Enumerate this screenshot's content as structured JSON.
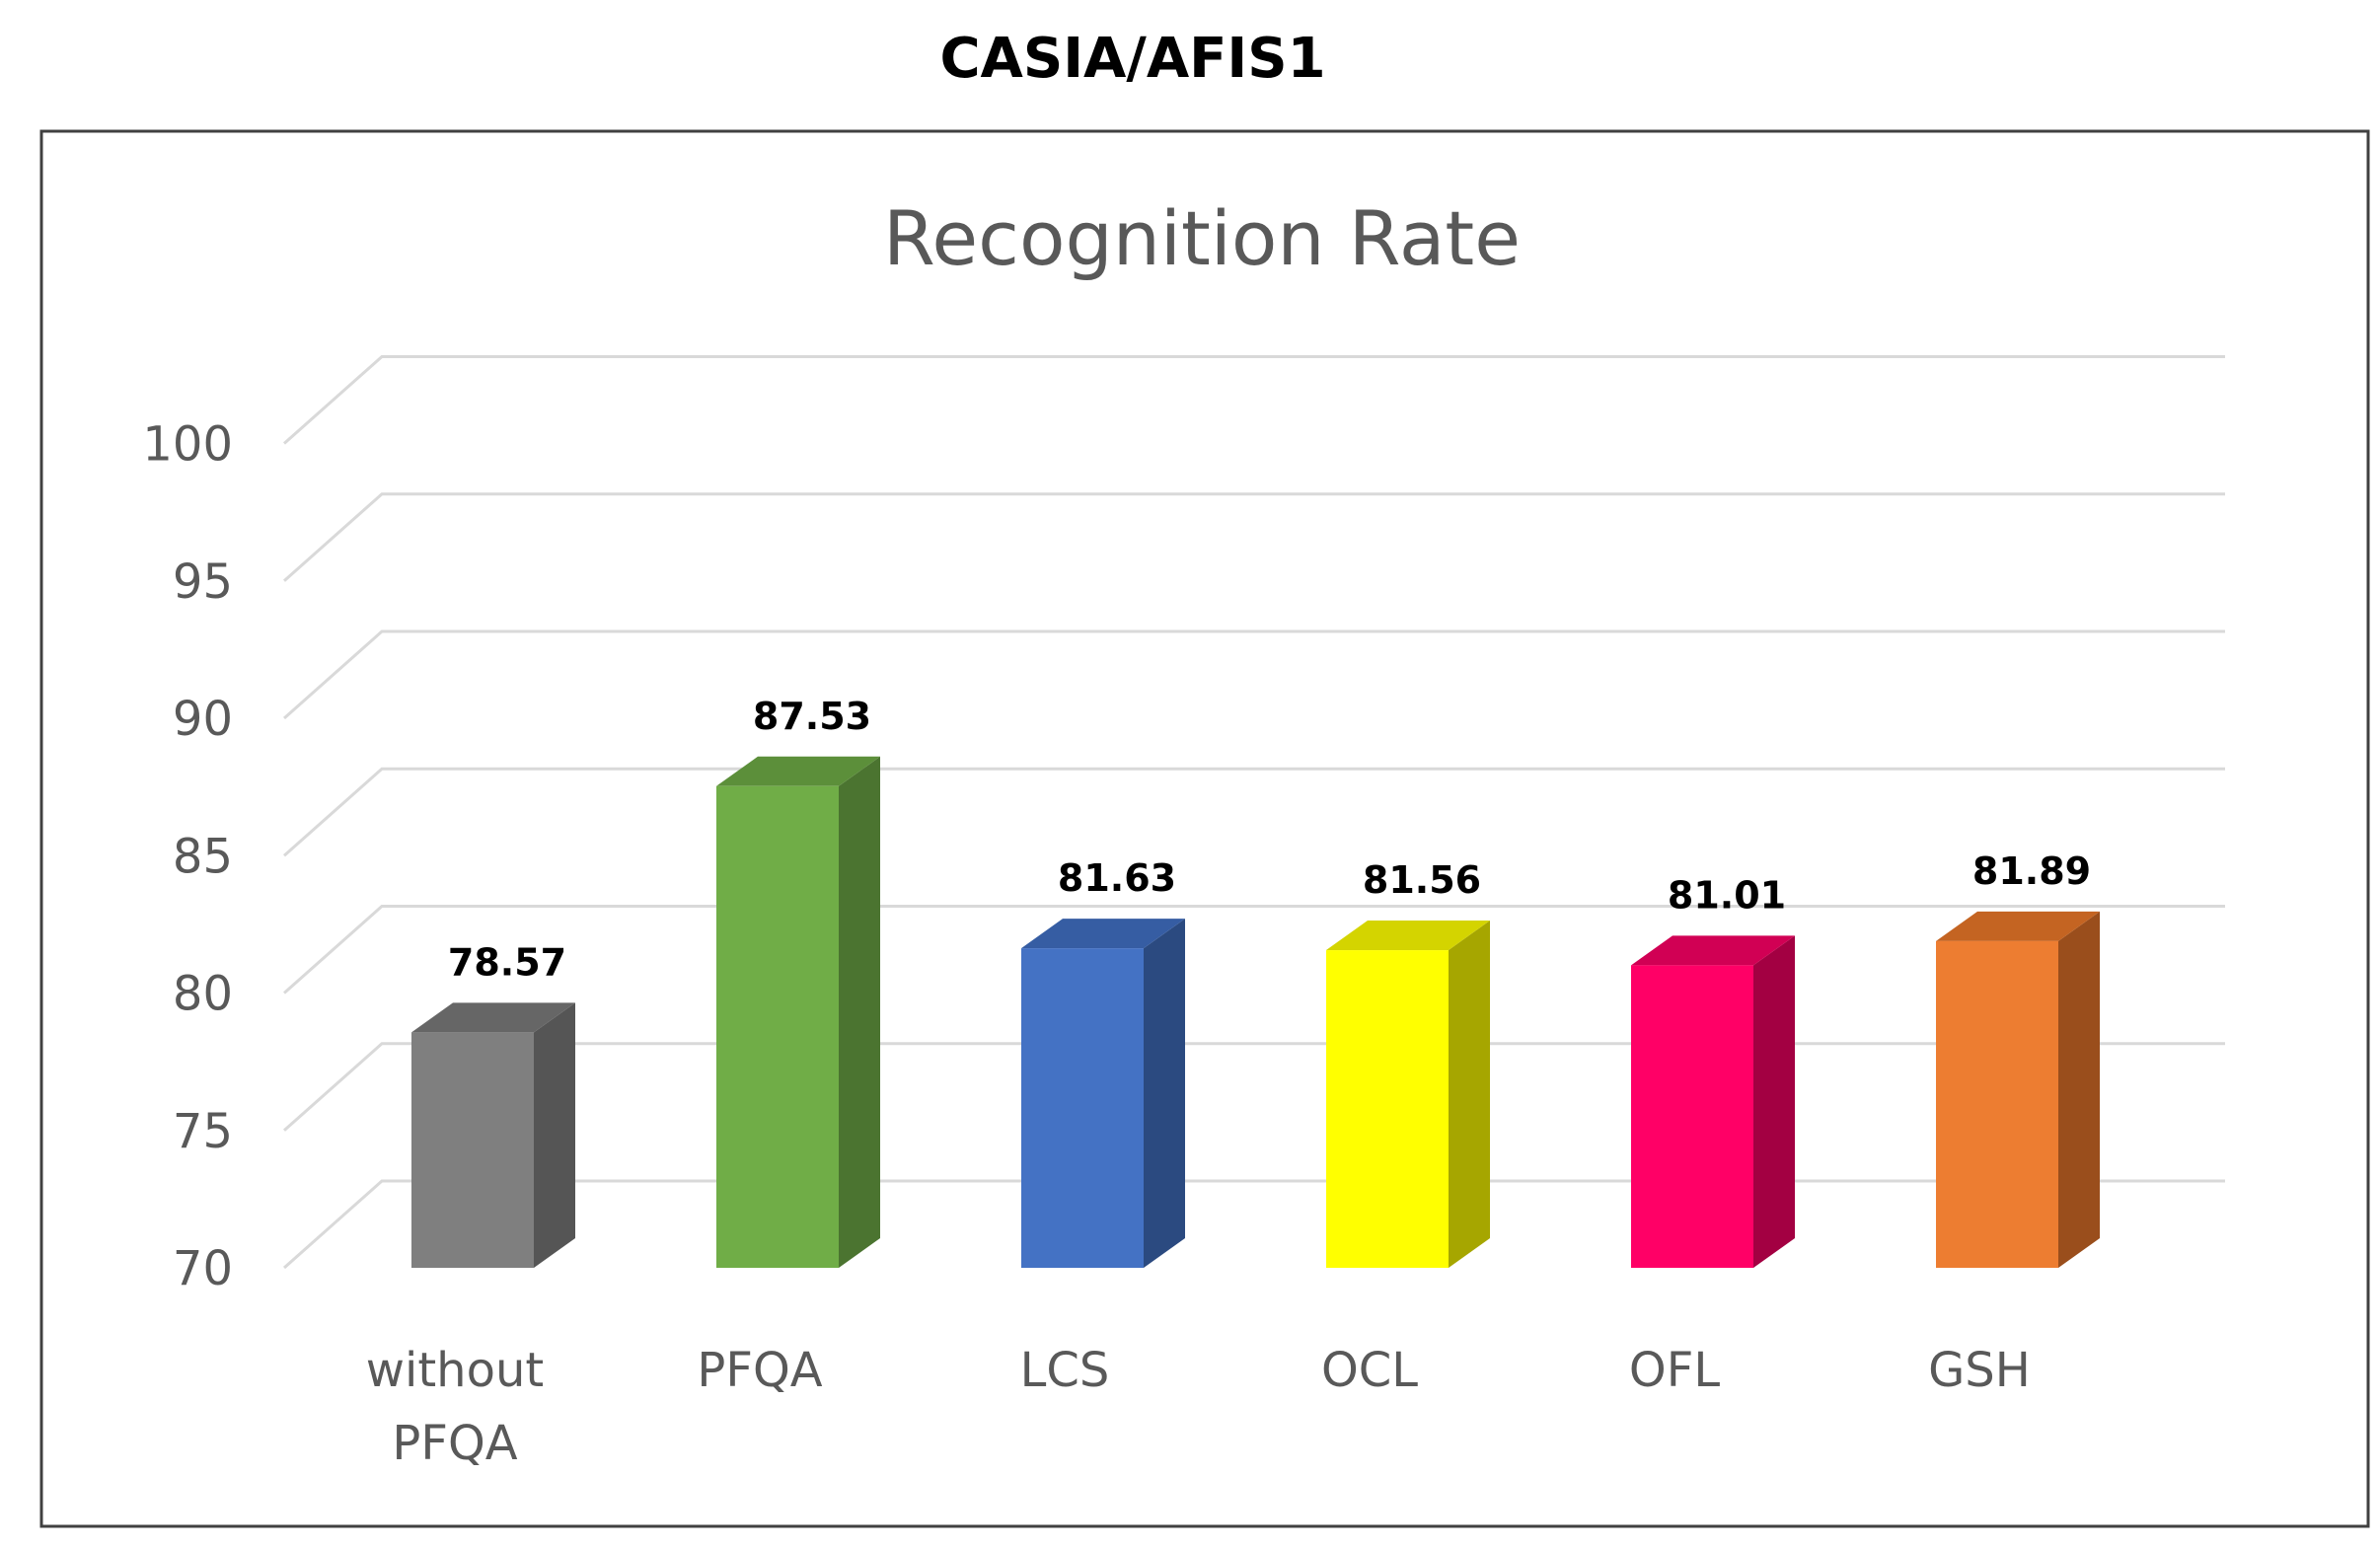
{
  "figure_title": "CASIA/AFIS1",
  "chart_data": {
    "type": "bar",
    "title": "Recognition Rate",
    "xlabel": "",
    "ylabel": "",
    "ylim": [
      70,
      100
    ],
    "yticks": [
      "70",
      "75",
      "80",
      "85",
      "90",
      "95",
      "100"
    ],
    "categories": [
      {
        "lines": [
          "without",
          "PFQA"
        ]
      },
      {
        "lines": [
          "PFQA"
        ]
      },
      {
        "lines": [
          "LCS"
        ]
      },
      {
        "lines": [
          "OCL"
        ]
      },
      {
        "lines": [
          "OFL"
        ]
      },
      {
        "lines": [
          "GSH"
        ]
      }
    ],
    "values": [
      78.57,
      87.53,
      81.63,
      81.56,
      81.01,
      81.89
    ],
    "value_labels": [
      "78.57",
      "87.53",
      "81.63",
      "81.56",
      "81.01",
      "81.89"
    ],
    "colors": [
      {
        "front": "#7f7f7f",
        "side": "#555555",
        "top": "#666666"
      },
      {
        "front": "#70ad47",
        "side": "#4b7430",
        "top": "#5c8f3a"
      },
      {
        "front": "#4472c4",
        "side": "#2b4a80",
        "top": "#365da3"
      },
      {
        "front": "#ffff00",
        "side": "#a6a600",
        "top": "#d4d400"
      },
      {
        "front": "#ff0066",
        "side": "#a30042",
        "top": "#d10054"
      },
      {
        "front": "#ed7d31",
        "side": "#9a4e1c",
        "top": "#c46422"
      }
    ],
    "grid": true,
    "legend": "none"
  }
}
